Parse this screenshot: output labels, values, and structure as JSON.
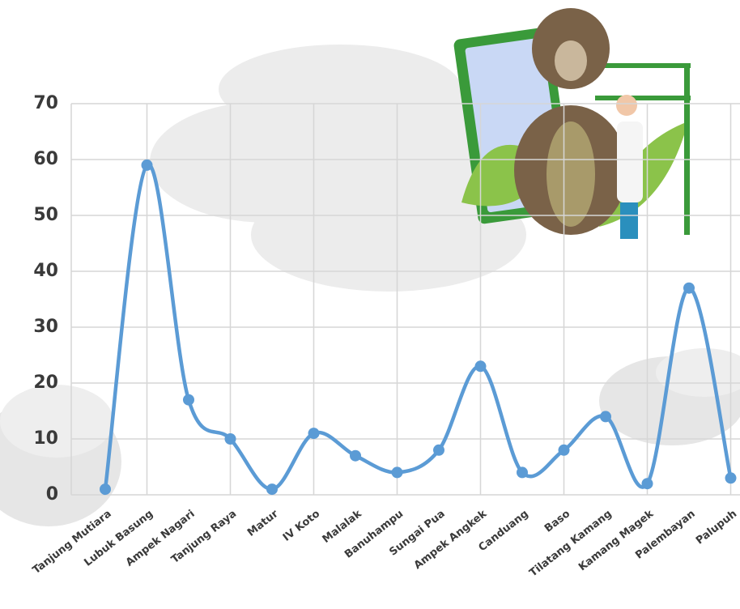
{
  "chart_data": {
    "type": "line",
    "categories": [
      "Tanjung Mutiara",
      "Lubuk Basung",
      "Ampek Nagari",
      "Tanjung Raya",
      "Matur",
      "IV Koto",
      "Malalak",
      "Banuhampu",
      "Sungai Pua",
      "Ampek Angkek",
      "Canduang",
      "Baso",
      "Tilatang Kamang",
      "Kamang Magek",
      "Palembayan",
      "Palupuh"
    ],
    "series": [
      {
        "color": "#5b9bd5",
        "values": [
          1,
          59,
          17,
          10,
          1,
          11,
          7,
          4,
          8,
          23,
          4,
          8,
          14,
          2,
          37,
          3
        ]
      }
    ],
    "ylim": [
      0,
      70
    ],
    "yticks": [
      0,
      10,
      20,
      30,
      40,
      50,
      60,
      70
    ],
    "grid": true
  }
}
